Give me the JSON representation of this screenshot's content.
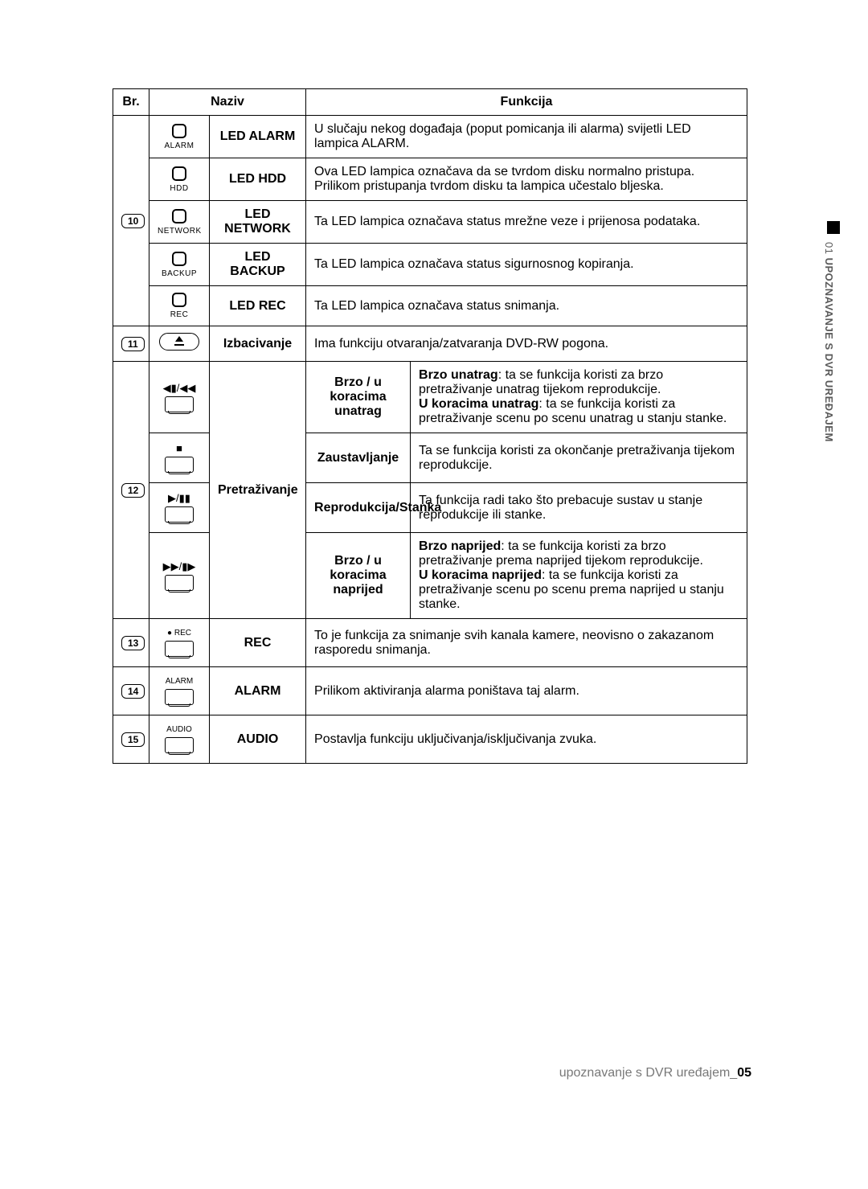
{
  "sideTab": {
    "chapterNum": "01",
    "chapterTitle": "UPOZNAVANJE S DVR UREĐAJEM"
  },
  "footer": {
    "text": "upoznavanje s DVR uređajem_",
    "pageNum": "05"
  },
  "headers": {
    "br": "Br.",
    "naziv": "Naziv",
    "funkcija": "Funkcija"
  },
  "rows": {
    "r10": {
      "num": "10",
      "items": [
        {
          "iconLabel": "ALARM",
          "name": "LED ALARM",
          "func": "U slučaju nekog događaja (poput pomicanja ili alarma) svijetli LED lampica ALARM."
        },
        {
          "iconLabel": "HDD",
          "name": "LED HDD",
          "func": "Ova LED lampica označava da se tvrdom disku normalno pristupa. Prilikom pristupanja tvrdom disku ta lampica učestalo bljeska."
        },
        {
          "iconLabel": "NETWORK",
          "name": "LED NETWORK",
          "func": "Ta LED lampica označava status mrežne veze i prijenosa podataka."
        },
        {
          "iconLabel": "BACKUP",
          "name": "LED BACKUP",
          "func": "Ta LED lampica označava status sigurnosnog kopiranja."
        },
        {
          "iconLabel": "REC",
          "name": "LED REC",
          "func": "Ta LED lampica označava status snimanja."
        }
      ]
    },
    "r11": {
      "num": "11",
      "name": "Izbacivanje",
      "func": "Ima funkciju otvaranja/zatvaranja DVD-RW pogona."
    },
    "r12": {
      "num": "12",
      "name": "Pretraživanje",
      "sub": [
        {
          "glyph": "◀▮/◀◀",
          "title": "Brzo / u koracima unatrag",
          "desc_b1": "Brzo unatrag",
          "desc_t1": ": ta se funkcija koristi za brzo pretraživanje unatrag tijekom reprodukcije.",
          "desc_b2": "U koracima unatrag",
          "desc_t2": ": ta se funkcija koristi za pretraživanje scenu po scenu unatrag u stanju stanke."
        },
        {
          "glyph": "■",
          "title": "Zaustavljanje",
          "desc": "Ta se funkcija koristi za okončanje pretraživanja tijekom reprodukcije."
        },
        {
          "glyph": "▶/▮▮",
          "title": "Reprodukcija/Stanka",
          "desc": "Ta funkcija radi tako što prebacuje sustav u stanje reprodukcije ili stanke."
        },
        {
          "glyph": "▶▶/▮▶",
          "title": "Brzo / u koracima naprijed",
          "desc_b1": "Brzo naprijed",
          "desc_t1": ": ta se funkcija koristi za brzo pretraživanje prema naprijed tijekom reprodukcije.",
          "desc_b2": "U koracima naprijed",
          "desc_t2": ": ta se funkcija koristi za pretraživanje scenu po scenu prema naprijed u stanju stanke."
        }
      ]
    },
    "r13": {
      "num": "13",
      "topLabel": "● REC",
      "name": "REC",
      "func": "To je funkcija za snimanje svih kanala kamere, neovisno o zakazanom rasporedu snimanja."
    },
    "r14": {
      "num": "14",
      "topLabel": "ALARM",
      "name": "ALARM",
      "func": "Prilikom aktiviranja alarma poništava taj alarm."
    },
    "r15": {
      "num": "15",
      "topLabel": "AUDIO",
      "name": "AUDIO",
      "func": "Postavlja funkciju uključivanja/isključivanja zvuka."
    }
  }
}
